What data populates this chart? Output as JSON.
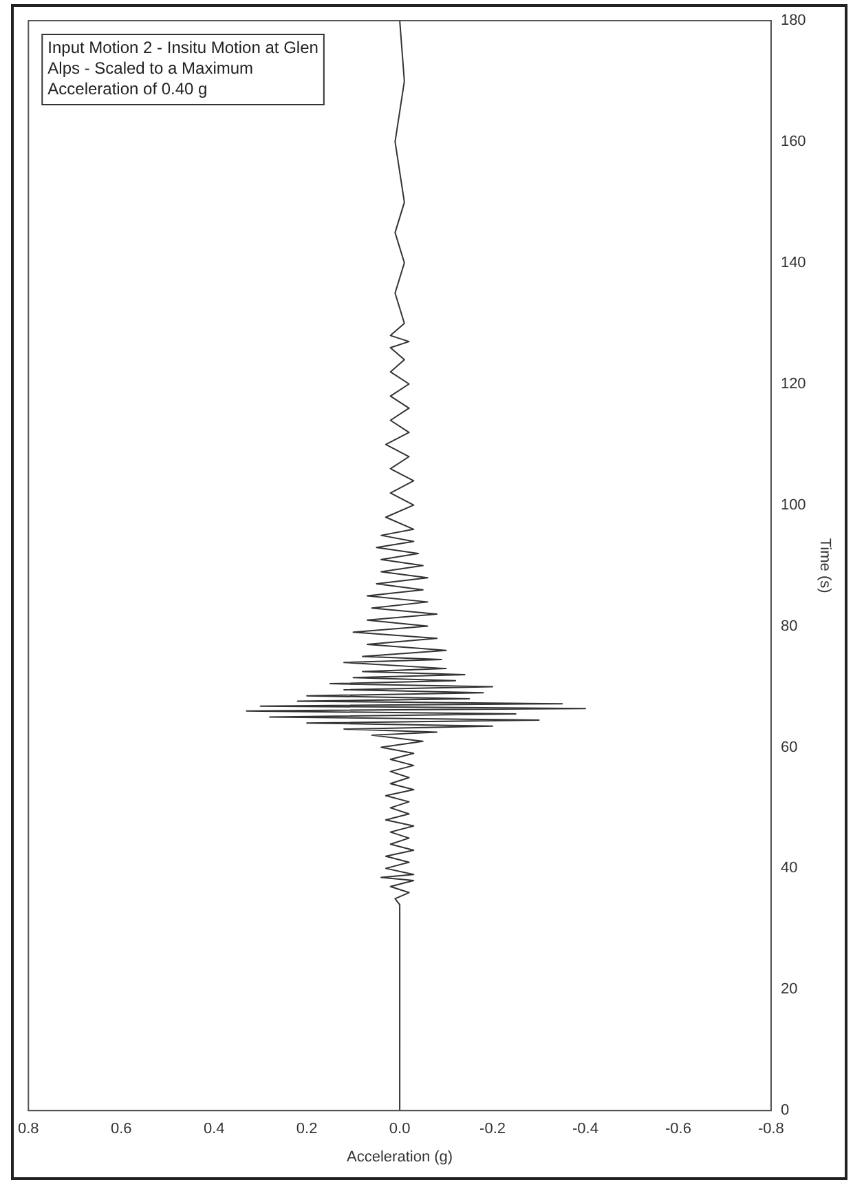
{
  "chart_data": {
    "type": "line",
    "orientation": "horizontal",
    "xlabel": "Acceleration (g)",
    "ylabel": "Time (s)",
    "annotations": [
      "Input Motion 2 - Insitu Motion at Glen Alps - Scaled to a Maximum Acceleration of 0.40 g"
    ],
    "ylim": [
      0,
      180
    ],
    "yticks": [
      0,
      20,
      40,
      60,
      80,
      100,
      120,
      140,
      160,
      180
    ],
    "xlim": [
      0.8,
      -0.8
    ],
    "xticks": [
      0.8,
      0.6,
      0.4,
      0.2,
      {
        "value": 0,
        "label": "0.0"
      },
      -0.2,
      -0.4,
      -0.6,
      -0.8
    ],
    "grid": false,
    "legend": false,
    "marker": "none",
    "line_style": "solid",
    "series": [
      {
        "color": "#333333",
        "x": [
          0,
          34,
          35,
          36,
          37,
          38,
          38.5,
          39,
          40,
          41,
          42,
          43,
          44,
          45,
          46,
          47,
          48,
          49,
          50,
          51,
          52,
          53,
          54,
          55,
          56,
          57,
          58,
          59,
          60,
          61,
          62,
          62.5,
          63,
          63.5,
          64,
          64.5,
          65,
          65.5,
          66,
          66.4,
          66.8,
          67.2,
          67.6,
          68,
          68.5,
          69,
          69.5,
          70,
          70.5,
          71,
          71.5,
          72,
          72.5,
          73,
          74,
          74.5,
          75,
          76,
          77,
          78,
          79,
          80,
          81,
          82,
          83,
          84,
          85,
          86,
          87,
          88,
          89,
          90,
          91,
          92,
          93,
          94,
          95,
          96,
          98,
          100,
          102,
          104,
          106,
          108,
          110,
          112,
          114,
          116,
          118,
          120,
          122,
          124,
          126,
          127,
          128,
          130,
          135,
          140,
          145,
          150,
          160,
          170,
          180
        ],
        "values": [
          0,
          0,
          0.01,
          -0.02,
          0.02,
          -0.03,
          0.04,
          -0.03,
          0.03,
          -0.02,
          0.03,
          -0.03,
          0.02,
          -0.02,
          0.02,
          -0.03,
          0.03,
          -0.02,
          0.02,
          -0.02,
          0.03,
          -0.03,
          0.02,
          -0.02,
          0.02,
          -0.03,
          0.02,
          -0.03,
          0.04,
          -0.05,
          0.06,
          -0.08,
          0.12,
          -0.2,
          0.2,
          -0.3,
          0.28,
          -0.25,
          0.33,
          -0.4,
          0.3,
          -0.35,
          0.22,
          -0.15,
          0.2,
          -0.18,
          0.12,
          -0.2,
          0.15,
          -0.12,
          0.1,
          -0.14,
          0.08,
          -0.1,
          0.12,
          -0.09,
          0.08,
          -0.1,
          0.07,
          -0.08,
          0.1,
          -0.06,
          0.07,
          -0.08,
          0.06,
          -0.06,
          0.07,
          -0.05,
          0.05,
          -0.06,
          0.04,
          -0.05,
          0.04,
          -0.04,
          0.05,
          -0.03,
          0.04,
          -0.03,
          0.03,
          -0.03,
          0.02,
          -0.03,
          0.02,
          -0.02,
          0.03,
          -0.02,
          0.02,
          -0.02,
          0.02,
          -0.02,
          0.02,
          -0.01,
          0.02,
          -0.02,
          0.02,
          -0.01,
          0.01,
          -0.01,
          0.01,
          -0.01,
          0.01,
          -0.01,
          0
        ]
      }
    ]
  }
}
